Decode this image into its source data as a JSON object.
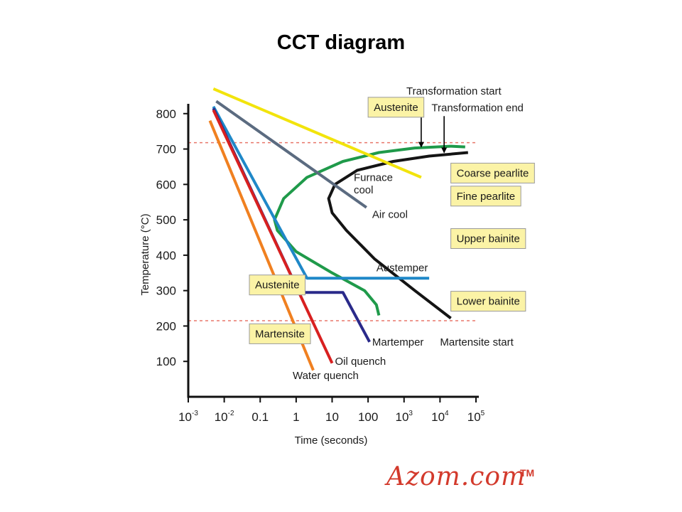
{
  "page": {
    "title": "CCT diagram"
  },
  "watermark": {
    "text": "Azom.com",
    "tm": "TM"
  },
  "chart_data": {
    "type": "line",
    "title": "",
    "xlabel": "Time (seconds)",
    "ylabel": "Temperature (°C)",
    "x_scale": "log",
    "xlim": [
      0.001,
      100000
    ],
    "ylim": [
      0,
      900
    ],
    "x_ticks": [
      {
        "value": 0.001,
        "base": "10",
        "exp": "-3"
      },
      {
        "value": 0.01,
        "base": "10",
        "exp": "-2"
      },
      {
        "value": 0.1,
        "label": "0.1"
      },
      {
        "value": 1,
        "label": "1"
      },
      {
        "value": 10,
        "label": "10"
      },
      {
        "value": 100,
        "label": "100"
      },
      {
        "value": 1000,
        "base": "10",
        "exp": "3"
      },
      {
        "value": 10000,
        "base": "10",
        "exp": "4"
      },
      {
        "value": 100000,
        "base": "10",
        "exp": "5"
      }
    ],
    "y_ticks": [
      100,
      200,
      300,
      400,
      500,
      600,
      700,
      800
    ],
    "grid": false,
    "reference_lines": [
      {
        "name": "A1",
        "y": 718,
        "color": "#e8766a",
        "dash": true
      },
      {
        "name": "Ms",
        "y": 215,
        "color": "#e8766a",
        "dash": true
      }
    ],
    "series": [
      {
        "name": "Transformation start",
        "color": "#1f9a4a",
        "width": 4,
        "points": [
          [
            200,
            230
          ],
          [
            170,
            260
          ],
          [
            80,
            300
          ],
          [
            10,
            350
          ],
          [
            1,
            410
          ],
          [
            0.3,
            470
          ],
          [
            0.25,
            500
          ],
          [
            0.45,
            560
          ],
          [
            2,
            620
          ],
          [
            20,
            665
          ],
          [
            200,
            690
          ],
          [
            2000,
            703
          ],
          [
            20000,
            708
          ],
          [
            50000,
            706
          ]
        ]
      },
      {
        "name": "Transformation end",
        "color": "#141414",
        "width": 4,
        "points": [
          [
            20000,
            222
          ],
          [
            2000,
            300
          ],
          [
            150,
            390
          ],
          [
            25,
            470
          ],
          [
            10,
            520
          ],
          [
            8,
            560
          ],
          [
            12,
            600
          ],
          [
            50,
            640
          ],
          [
            500,
            665
          ],
          [
            5000,
            680
          ],
          [
            60000,
            690
          ]
        ]
      },
      {
        "name": "Furnace cool",
        "color": "#f2e40c",
        "width": 4,
        "points": [
          [
            0.005,
            870
          ],
          [
            3000,
            620
          ]
        ]
      },
      {
        "name": "Air cool",
        "color": "#5b6b80",
        "width": 4,
        "points": [
          [
            0.006,
            835
          ],
          [
            90,
            535
          ]
        ]
      },
      {
        "name": "Austemper",
        "color": "#1f88c8",
        "width": 4,
        "points": [
          [
            0.005,
            820
          ],
          [
            2,
            335
          ],
          [
            5000,
            335
          ]
        ]
      },
      {
        "name": "Martemper",
        "color": "#2a2a8a",
        "width": 4,
        "points": [
          [
            0.005,
            815
          ],
          [
            1.2,
            295
          ],
          [
            20,
            295
          ],
          [
            110,
            155
          ]
        ]
      },
      {
        "name": "Oil quench",
        "color": "#d82020",
        "width": 4,
        "points": [
          [
            0.005,
            810
          ],
          [
            10,
            95
          ]
        ]
      },
      {
        "name": "Water quench",
        "color": "#f08020",
        "width": 4,
        "points": [
          [
            0.004,
            780
          ],
          [
            3,
            75
          ]
        ]
      }
    ],
    "curve_labels": [
      {
        "text": "Furnace",
        "at": [
          40,
          610
        ]
      },
      {
        "text": "cool",
        "at": [
          40,
          575
        ]
      },
      {
        "text": "Air cool",
        "at": [
          130,
          505
        ]
      },
      {
        "text": "Austemper",
        "at": [
          170,
          355
        ]
      },
      {
        "text": "Martemper",
        "at": [
          130,
          145
        ]
      },
      {
        "text": "Oil quench",
        "at": [
          12,
          90
        ]
      },
      {
        "text": "Water quench",
        "at": [
          0.8,
          50
        ]
      },
      {
        "text": "Martensite start",
        "at": [
          10000,
          145
        ]
      }
    ],
    "annotations": [
      {
        "text": "Transformation start",
        "text_at": [
          2000,
          862
        ],
        "arrow_from": [
          3000,
          838
        ],
        "arrow_to": [
          3000,
          706
        ]
      },
      {
        "text": "Transformation end",
        "text_at": [
          10000,
          815
        ],
        "arrow_from": [
          13000,
          793
        ],
        "arrow_to": [
          13000,
          690
        ]
      }
    ],
    "region_labels": [
      {
        "text": "Austenite",
        "at": [
          100,
          818
        ]
      },
      {
        "text": "Coarse pearlite",
        "at": [
          20000,
          632
        ]
      },
      {
        "text": "Fine pearlite",
        "at": [
          20000,
          567
        ]
      },
      {
        "text": "Upper bainite",
        "at": [
          20000,
          447
        ]
      },
      {
        "text": "Lower bainite",
        "at": [
          20000,
          270
        ]
      },
      {
        "text": "Austenite",
        "at": [
          0.05,
          316
        ]
      },
      {
        "text": "Martensite",
        "at": [
          0.05,
          178
        ]
      }
    ]
  }
}
